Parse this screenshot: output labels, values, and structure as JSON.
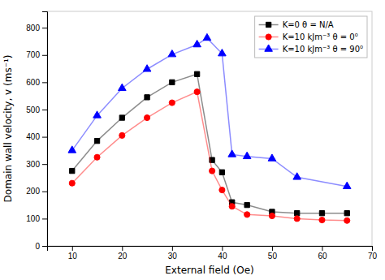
{
  "chart_data": {
    "type": "line",
    "x_label": "External field (Oe)",
    "y_label": "Domain wall velocity, v (ms⁻¹)",
    "series": [
      {
        "name": "K=0  θ = N/A",
        "color": "black",
        "marker": "square",
        "x": [
          10,
          15,
          20,
          25,
          30,
          35,
          38,
          40,
          42,
          45,
          50,
          55,
          60,
          65
        ],
        "values": [
          275,
          385,
          470,
          545,
          600,
          630,
          315,
          270,
          160,
          150,
          125,
          120,
          120,
          120
        ]
      },
      {
        "name": "K=10 kJm⁻³ θ = 0⁰",
        "color": "red",
        "marker": "circle",
        "x": [
          10,
          15,
          20,
          25,
          30,
          35,
          38,
          40,
          42,
          45,
          50,
          55,
          60,
          65
        ],
        "values": [
          230,
          325,
          405,
          470,
          525,
          565,
          275,
          205,
          145,
          115,
          110,
          100,
          95,
          93
        ]
      },
      {
        "name": "K=10 kJm⁻³ θ = 90⁰",
        "color": "blue",
        "marker": "triangle",
        "x": [
          10,
          15,
          20,
          25,
          30,
          35,
          37,
          40,
          42,
          45,
          50,
          55,
          65
        ],
        "values": [
          350,
          478,
          578,
          648,
          702,
          738,
          762,
          705,
          335,
          328,
          320,
          252,
          218
        ]
      }
    ],
    "xlim": [
      5,
      70
    ],
    "ylim": [
      0,
      860
    ],
    "xticks": [
      10,
      20,
      30,
      40,
      50,
      60,
      70
    ],
    "yticks": [
      0,
      100,
      200,
      300,
      400,
      500,
      600,
      700,
      800
    ],
    "grid": false,
    "legend": "upper right"
  }
}
